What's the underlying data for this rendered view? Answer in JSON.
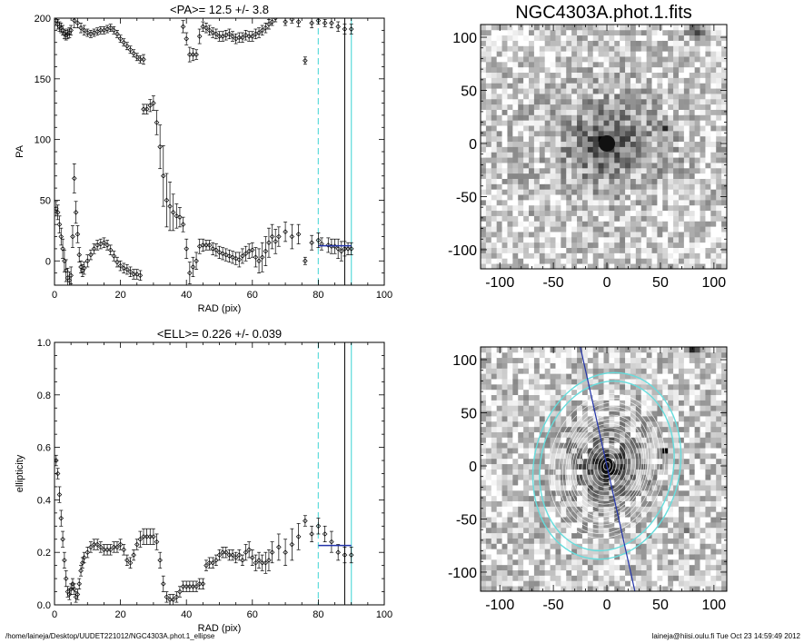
{
  "footer": {
    "path": "/home/laineja/Desktop/UUDET221012/NGC4303A.phot.1_ellipse",
    "stamp": "laineja@hiisi.oulu.fi  Tue Oct 23 14:59:49 2012"
  },
  "colors": {
    "cyan": "#66dddd",
    "blue": "#2233aa",
    "black": "#000000"
  },
  "chart_data": [
    {
      "id": "pa",
      "type": "scatter",
      "title": "<PA>=  12.5 +/-   3.8",
      "xlabel": "RAD (pix)",
      "ylabel": "PA",
      "xlim": [
        0,
        100
      ],
      "ylim": [
        -20,
        200
      ],
      "xticks": [
        0,
        20,
        40,
        60,
        80,
        100
      ],
      "yticks": [
        0,
        50,
        100,
        150,
        200
      ],
      "vlines": [
        {
          "x": 80,
          "style": "dashed",
          "color": "cyan"
        },
        {
          "x": 88,
          "style": "solid",
          "color": "black"
        },
        {
          "x": 90,
          "style": "solid",
          "color": "cyan"
        }
      ],
      "mean_line": {
        "x": [
          80,
          90
        ],
        "y": 12.5
      },
      "low_branch": [
        [
          0.5,
          43,
          6
        ],
        [
          1,
          40,
          6
        ],
        [
          1.5,
          30,
          7
        ],
        [
          2,
          20,
          7
        ],
        [
          2.5,
          10,
          8
        ],
        [
          3,
          0,
          9
        ],
        [
          3.5,
          -8,
          9
        ],
        [
          4,
          -14,
          8
        ],
        [
          4.5,
          -16,
          7
        ],
        [
          5,
          -12,
          7
        ],
        [
          5.5,
          20,
          9
        ],
        [
          6,
          68,
          12
        ],
        [
          6.5,
          40,
          9
        ],
        [
          7,
          22,
          7
        ],
        [
          7.5,
          5,
          6
        ],
        [
          8,
          -5,
          5
        ],
        [
          8.5,
          -8,
          5
        ],
        [
          9,
          -6,
          5
        ],
        [
          10,
          0,
          5
        ],
        [
          11,
          5,
          4
        ],
        [
          12,
          10,
          4
        ],
        [
          13,
          13,
          4
        ],
        [
          14,
          14,
          4
        ],
        [
          15,
          15,
          4
        ],
        [
          16,
          13,
          4
        ],
        [
          17,
          9,
          4
        ],
        [
          18,
          4,
          4
        ],
        [
          19,
          -1,
          4
        ],
        [
          20,
          -4,
          4
        ],
        [
          21,
          -6,
          4
        ],
        [
          22,
          -7,
          4
        ],
        [
          23,
          -9,
          4
        ],
        [
          24,
          -11,
          4
        ],
        [
          25,
          -11,
          4
        ],
        [
          26,
          -12,
          4
        ]
      ],
      "upper_branch": [
        [
          0.5,
          198,
          4
        ],
        [
          1,
          195,
          4
        ],
        [
          1.5,
          193,
          4
        ],
        [
          2,
          192,
          4
        ],
        [
          2.5,
          190,
          4
        ],
        [
          3,
          187,
          4
        ],
        [
          3.5,
          186,
          4
        ],
        [
          4,
          187,
          4
        ],
        [
          4.5,
          188,
          4
        ],
        [
          5,
          190,
          4
        ],
        [
          6,
          198,
          6
        ],
        [
          7,
          196,
          4
        ],
        [
          8,
          192,
          4
        ],
        [
          9,
          190,
          4
        ],
        [
          10,
          188,
          3
        ],
        [
          11,
          187,
          3
        ],
        [
          12,
          188,
          3
        ],
        [
          13,
          189,
          3
        ],
        [
          14,
          190,
          3
        ],
        [
          15,
          190,
          3
        ],
        [
          16,
          191,
          3
        ],
        [
          17,
          192,
          3
        ],
        [
          18,
          190,
          3
        ],
        [
          19,
          187,
          3
        ],
        [
          20,
          183,
          3
        ],
        [
          21,
          180,
          3
        ],
        [
          22,
          177,
          3
        ],
        [
          23,
          174,
          3
        ],
        [
          24,
          171,
          3
        ],
        [
          25,
          168,
          3
        ],
        [
          26,
          166,
          3
        ],
        [
          27,
          166,
          4
        ]
      ],
      "points": [
        [
          27,
          125,
          4
        ],
        [
          28,
          125,
          4
        ],
        [
          29,
          128,
          5
        ],
        [
          30,
          130,
          6
        ],
        [
          31,
          114,
          10
        ],
        [
          32,
          94,
          18
        ],
        [
          33,
          70,
          25
        ],
        [
          34,
          50,
          22
        ],
        [
          35,
          45,
          20
        ],
        [
          36,
          40,
          15
        ],
        [
          37,
          37,
          10
        ],
        [
          38,
          36,
          8
        ],
        [
          39,
          30,
          6
        ],
        [
          40,
          10,
          8
        ],
        [
          41,
          -10,
          9
        ],
        [
          42,
          -5,
          8
        ],
        [
          43,
          0,
          7
        ],
        [
          44,
          12,
          6
        ],
        [
          45,
          13,
          5
        ],
        [
          46,
          13,
          4
        ],
        [
          47,
          13,
          4
        ],
        [
          48,
          10,
          5
        ],
        [
          49,
          9,
          5
        ],
        [
          50,
          7,
          5
        ],
        [
          51,
          6,
          5
        ],
        [
          52,
          5,
          5
        ],
        [
          53,
          4,
          5
        ],
        [
          54,
          3,
          5
        ],
        [
          55,
          2,
          5
        ],
        [
          56,
          1,
          6
        ],
        [
          57,
          4,
          6
        ],
        [
          58,
          6,
          6
        ],
        [
          59,
          8,
          6
        ],
        [
          60,
          9,
          6
        ],
        [
          61,
          3,
          8
        ],
        [
          62,
          0,
          10
        ],
        [
          63,
          3,
          12
        ],
        [
          64,
          8,
          12
        ],
        [
          65,
          15,
          12
        ],
        [
          66,
          20,
          10
        ],
        [
          67,
          16,
          10
        ],
        [
          68,
          20,
          8
        ],
        [
          70,
          24,
          8
        ],
        [
          72,
          20,
          10
        ],
        [
          74,
          22,
          8
        ],
        [
          76,
          0,
          3
        ],
        [
          78,
          15,
          6
        ],
        [
          80,
          17,
          6
        ],
        [
          81,
          14,
          5
        ],
        [
          83,
          13,
          6
        ],
        [
          84,
          12,
          6
        ],
        [
          85,
          12,
          6
        ],
        [
          86,
          10,
          8
        ],
        [
          87,
          8,
          8
        ],
        [
          88,
          10,
          6
        ],
        [
          89,
          10,
          5
        ],
        [
          90,
          10,
          5
        ]
      ],
      "upper_points": [
        [
          39,
          193,
          5
        ],
        [
          40,
          183,
          5
        ],
        [
          41,
          170,
          6
        ],
        [
          42,
          170,
          5
        ],
        [
          43,
          170,
          4
        ],
        [
          44,
          185,
          6
        ],
        [
          45,
          193,
          4
        ],
        [
          46,
          192,
          4
        ],
        [
          47,
          190,
          4
        ],
        [
          48,
          188,
          4
        ],
        [
          49,
          187,
          4
        ],
        [
          50,
          185,
          4
        ],
        [
          51,
          185,
          4
        ],
        [
          52,
          186,
          4
        ],
        [
          53,
          187,
          4
        ],
        [
          54,
          185,
          4
        ],
        [
          55,
          183,
          4
        ],
        [
          56,
          184,
          4
        ],
        [
          57,
          184,
          4
        ],
        [
          58,
          186,
          4
        ],
        [
          59,
          185,
          4
        ],
        [
          60,
          185,
          4
        ],
        [
          61,
          187,
          4
        ],
        [
          62,
          188,
          4
        ],
        [
          63,
          190,
          4
        ],
        [
          64,
          192,
          4
        ],
        [
          65,
          195,
          4
        ],
        [
          66,
          197,
          3
        ],
        [
          67,
          200,
          3
        ],
        [
          70,
          197,
          3
        ],
        [
          72,
          199,
          3
        ],
        [
          74,
          197,
          4
        ],
        [
          76,
          165,
          3
        ],
        [
          78,
          196,
          4
        ],
        [
          80,
          198,
          3
        ],
        [
          82,
          196,
          3
        ],
        [
          84,
          196,
          4
        ],
        [
          86,
          193,
          4
        ],
        [
          88,
          191,
          4
        ],
        [
          90,
          191,
          4
        ]
      ]
    },
    {
      "id": "ell",
      "type": "scatter",
      "title": "<ELL>= 0.226 +/-  0.039",
      "xlabel": "RAD (pix)",
      "ylabel": "ellipticity",
      "xlim": [
        0,
        100
      ],
      "ylim": [
        0,
        1
      ],
      "xticks": [
        0,
        20,
        40,
        60,
        80,
        100
      ],
      "yticks": [
        0.0,
        0.2,
        0.4,
        0.6,
        0.8,
        1.0
      ],
      "vlines": [
        {
          "x": 80,
          "style": "dashed",
          "color": "cyan"
        },
        {
          "x": 88,
          "style": "solid",
          "color": "black"
        },
        {
          "x": 90,
          "style": "solid",
          "color": "cyan"
        }
      ],
      "mean_line": {
        "x": [
          80,
          90
        ],
        "y": 0.226
      },
      "points": [
        [
          0.5,
          0.55,
          0.02
        ],
        [
          1,
          0.5,
          0.02
        ],
        [
          1.5,
          0.42,
          0.03
        ],
        [
          2,
          0.33,
          0.03
        ],
        [
          2.5,
          0.25,
          0.03
        ],
        [
          3,
          0.17,
          0.03
        ],
        [
          3.5,
          0.1,
          0.03
        ],
        [
          4,
          0.05,
          0.02
        ],
        [
          4.5,
          0.04,
          0.02
        ],
        [
          5,
          0.06,
          0.02
        ],
        [
          5.5,
          0.08,
          0.02
        ],
        [
          6,
          0.06,
          0.02
        ],
        [
          6.5,
          0.03,
          0.02
        ],
        [
          7,
          0.04,
          0.02
        ],
        [
          7.5,
          0.08,
          0.02
        ],
        [
          8,
          0.13,
          0.02
        ],
        [
          8.5,
          0.16,
          0.02
        ],
        [
          9,
          0.18,
          0.02
        ],
        [
          10,
          0.2,
          0.02
        ],
        [
          11,
          0.22,
          0.02
        ],
        [
          12,
          0.23,
          0.02
        ],
        [
          13,
          0.23,
          0.02
        ],
        [
          14,
          0.22,
          0.02
        ],
        [
          15,
          0.21,
          0.02
        ],
        [
          16,
          0.21,
          0.02
        ],
        [
          17,
          0.21,
          0.02
        ],
        [
          18,
          0.22,
          0.02
        ],
        [
          19,
          0.22,
          0.02
        ],
        [
          20,
          0.23,
          0.02
        ],
        [
          21,
          0.21,
          0.02
        ],
        [
          22,
          0.17,
          0.02
        ],
        [
          23,
          0.16,
          0.02
        ],
        [
          24,
          0.19,
          0.02
        ],
        [
          25,
          0.23,
          0.02
        ],
        [
          26,
          0.25,
          0.03
        ],
        [
          27,
          0.26,
          0.03
        ],
        [
          28,
          0.26,
          0.03
        ],
        [
          29,
          0.26,
          0.03
        ],
        [
          30,
          0.26,
          0.03
        ],
        [
          31,
          0.24,
          0.03
        ],
        [
          32,
          0.17,
          0.03
        ],
        [
          33,
          0.08,
          0.03
        ],
        [
          34,
          0.03,
          0.02
        ],
        [
          35,
          0.02,
          0.02
        ],
        [
          36,
          0.02,
          0.02
        ],
        [
          37,
          0.03,
          0.02
        ],
        [
          38,
          0.05,
          0.02
        ],
        [
          39,
          0.07,
          0.02
        ],
        [
          40,
          0.07,
          0.02
        ],
        [
          41,
          0.07,
          0.02
        ],
        [
          42,
          0.07,
          0.02
        ],
        [
          43,
          0.07,
          0.02
        ],
        [
          44,
          0.08,
          0.02
        ],
        [
          45,
          0.08,
          0.02
        ],
        [
          46,
          0.15,
          0.02
        ],
        [
          47,
          0.16,
          0.02
        ],
        [
          48,
          0.16,
          0.02
        ],
        [
          49,
          0.17,
          0.02
        ],
        [
          50,
          0.19,
          0.02
        ],
        [
          51,
          0.2,
          0.02
        ],
        [
          52,
          0.2,
          0.02
        ],
        [
          53,
          0.19,
          0.02
        ],
        [
          54,
          0.19,
          0.02
        ],
        [
          55,
          0.18,
          0.02
        ],
        [
          56,
          0.19,
          0.02
        ],
        [
          57,
          0.17,
          0.02
        ],
        [
          58,
          0.2,
          0.03
        ],
        [
          59,
          0.21,
          0.03
        ],
        [
          60,
          0.18,
          0.03
        ],
        [
          61,
          0.16,
          0.03
        ],
        [
          62,
          0.17,
          0.03
        ],
        [
          63,
          0.16,
          0.03
        ],
        [
          64,
          0.16,
          0.04
        ],
        [
          65,
          0.17,
          0.04
        ],
        [
          66,
          0.2,
          0.04
        ],
        [
          68,
          0.22,
          0.05
        ],
        [
          70,
          0.2,
          0.05
        ],
        [
          72,
          0.23,
          0.06
        ],
        [
          74,
          0.26,
          0.05
        ],
        [
          76,
          0.32,
          0.02
        ],
        [
          78,
          0.27,
          0.03
        ],
        [
          80,
          0.3,
          0.03
        ],
        [
          82,
          0.27,
          0.03
        ],
        [
          84,
          0.24,
          0.04
        ],
        [
          86,
          0.2,
          0.03
        ],
        [
          88,
          0.19,
          0.03
        ],
        [
          90,
          0.19,
          0.03
        ]
      ]
    },
    {
      "id": "img1",
      "type": "heatmap",
      "title": "NGC4303A.phot.1.fits",
      "xlim": [
        -118,
        112
      ],
      "ylim": [
        -118,
        112
      ],
      "xticks": [
        -100,
        -50,
        0,
        50,
        100
      ],
      "yticks": [
        -100,
        -50,
        0,
        50,
        100
      ],
      "colormap": "inverted gray",
      "center": [
        0,
        0
      ]
    },
    {
      "id": "img2",
      "type": "heatmap",
      "xlim": [
        -118,
        112
      ],
      "ylim": [
        -118,
        112
      ],
      "xticks": [
        -100,
        -50,
        0,
        50,
        100
      ],
      "yticks": [
        -100,
        -50,
        0,
        50,
        100
      ],
      "colormap": "inverted gray",
      "contours": "ellipse isophotes",
      "cyan_ellipses": [
        {
          "a": 80,
          "ell": 0.226,
          "pa": 12.5
        },
        {
          "a": 88,
          "ell": 0.226,
          "pa": 12.5
        }
      ],
      "major_axis_pa": 12.5
    }
  ]
}
